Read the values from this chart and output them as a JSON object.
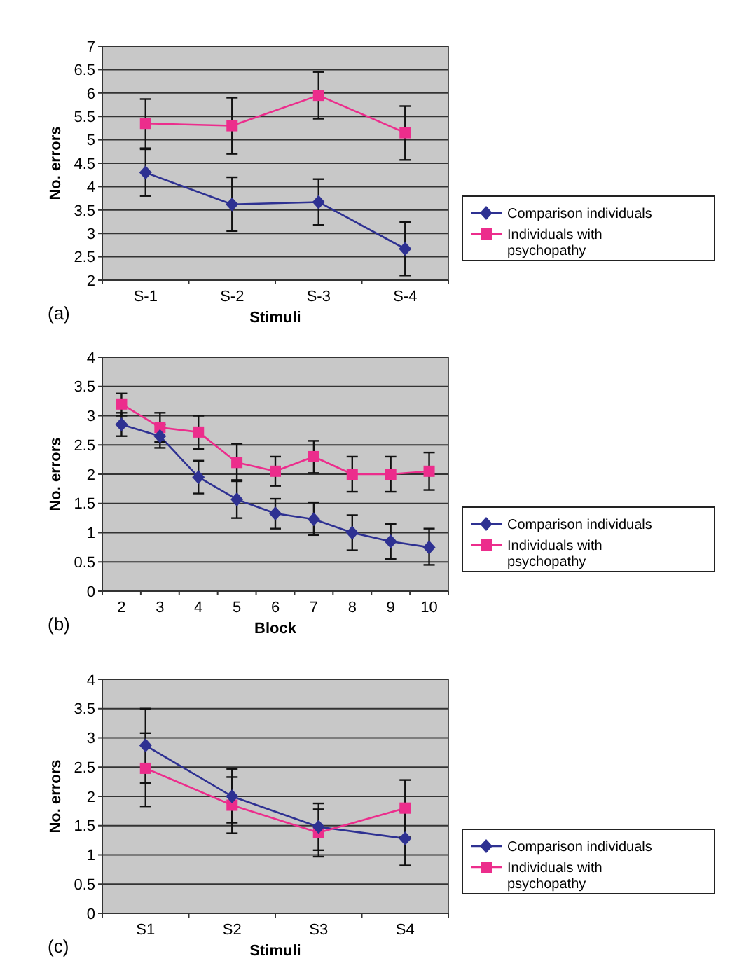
{
  "chart_data": [
    {
      "type": "line",
      "xlabel": "Stimuli",
      "ylabel": "No. errors",
      "annotations": [
        "(a)"
      ],
      "categories": [
        "S-1",
        "S-2",
        "S-3",
        "S-4"
      ],
      "ylim": [
        2,
        7
      ],
      "yticks": [
        2,
        2.5,
        3,
        3.5,
        4,
        4.5,
        5,
        5.5,
        6,
        6.5,
        7
      ],
      "grid": "y",
      "legend": "right",
      "series": [
        {
          "name": "Comparison individuals",
          "color": "#2e3192",
          "marker": "diamond",
          "values": [
            4.3,
            3.62,
            3.67,
            2.67
          ],
          "errors": [
            [
              3.8,
              4.8
            ],
            [
              3.05,
              4.2
            ],
            [
              3.18,
              4.16
            ],
            [
              2.1,
              3.24
            ]
          ]
        },
        {
          "name": "Individuals with psychopathy",
          "color": "#ec2d8c",
          "marker": "square",
          "values": [
            5.35,
            5.3,
            5.95,
            5.15
          ],
          "errors": [
            [
              4.82,
              5.87
            ],
            [
              4.7,
              5.9
            ],
            [
              5.45,
              6.45
            ],
            [
              4.57,
              5.72
            ]
          ]
        }
      ]
    },
    {
      "type": "line",
      "xlabel": "Block",
      "ylabel": "No. errors",
      "annotations": [
        "(b)"
      ],
      "categories": [
        "2",
        "3",
        "4",
        "5",
        "6",
        "7",
        "8",
        "9",
        "10"
      ],
      "ylim": [
        0,
        4
      ],
      "yticks": [
        0,
        0.5,
        1,
        1.5,
        2,
        2.5,
        3,
        3.5,
        4
      ],
      "grid": "y",
      "legend": "right",
      "series": [
        {
          "name": "Comparison individuals",
          "color": "#2e3192",
          "marker": "diamond",
          "values": [
            2.85,
            2.65,
            1.95,
            1.57,
            1.33,
            1.23,
            1.0,
            0.85,
            0.75
          ],
          "errors": [
            [
              2.65,
              3.05
            ],
            [
              2.45,
              2.85
            ],
            [
              1.67,
              2.23
            ],
            [
              1.25,
              1.88
            ],
            [
              1.07,
              1.58
            ],
            [
              0.96,
              1.52
            ],
            [
              0.7,
              1.3
            ],
            [
              0.55,
              1.15
            ],
            [
              0.45,
              1.07
            ]
          ]
        },
        {
          "name": "Individuals with psychopathy",
          "color": "#ec2d8c",
          "marker": "square",
          "values": [
            3.2,
            2.8,
            2.72,
            2.2,
            2.05,
            2.3,
            2.0,
            2.0,
            2.05
          ],
          "errors": [
            [
              3.0,
              3.38
            ],
            [
              2.55,
              3.05
            ],
            [
              2.43,
              3.0
            ],
            [
              1.9,
              2.52
            ],
            [
              1.8,
              2.3
            ],
            [
              2.02,
              2.57
            ],
            [
              1.7,
              2.3
            ],
            [
              1.7,
              2.3
            ],
            [
              1.73,
              2.37
            ]
          ]
        }
      ]
    },
    {
      "type": "line",
      "xlabel": "Stimuli",
      "ylabel": "No. errors",
      "annotations": [
        "(c)"
      ],
      "categories": [
        "S1",
        "S2",
        "S3",
        "S4"
      ],
      "ylim": [
        0,
        4
      ],
      "yticks": [
        0,
        0.5,
        1,
        1.5,
        2,
        2.5,
        3,
        3.5,
        4
      ],
      "grid": "y",
      "legend": "right",
      "series": [
        {
          "name": "Comparison individuals",
          "color": "#2e3192",
          "marker": "diamond",
          "values": [
            2.87,
            2.0,
            1.48,
            1.28
          ],
          "errors": [
            [
              2.23,
              3.5
            ],
            [
              1.55,
              2.47
            ],
            [
              1.08,
              1.88
            ],
            [
              0.82,
              1.75
            ]
          ]
        },
        {
          "name": "Individuals with psychopathy",
          "color": "#ec2d8c",
          "marker": "square",
          "values": [
            2.48,
            1.85,
            1.38,
            1.8
          ],
          "errors": [
            [
              1.83,
              3.08
            ],
            [
              1.37,
              2.33
            ],
            [
              0.97,
              1.78
            ],
            [
              1.3,
              2.28
            ]
          ]
        }
      ]
    }
  ]
}
